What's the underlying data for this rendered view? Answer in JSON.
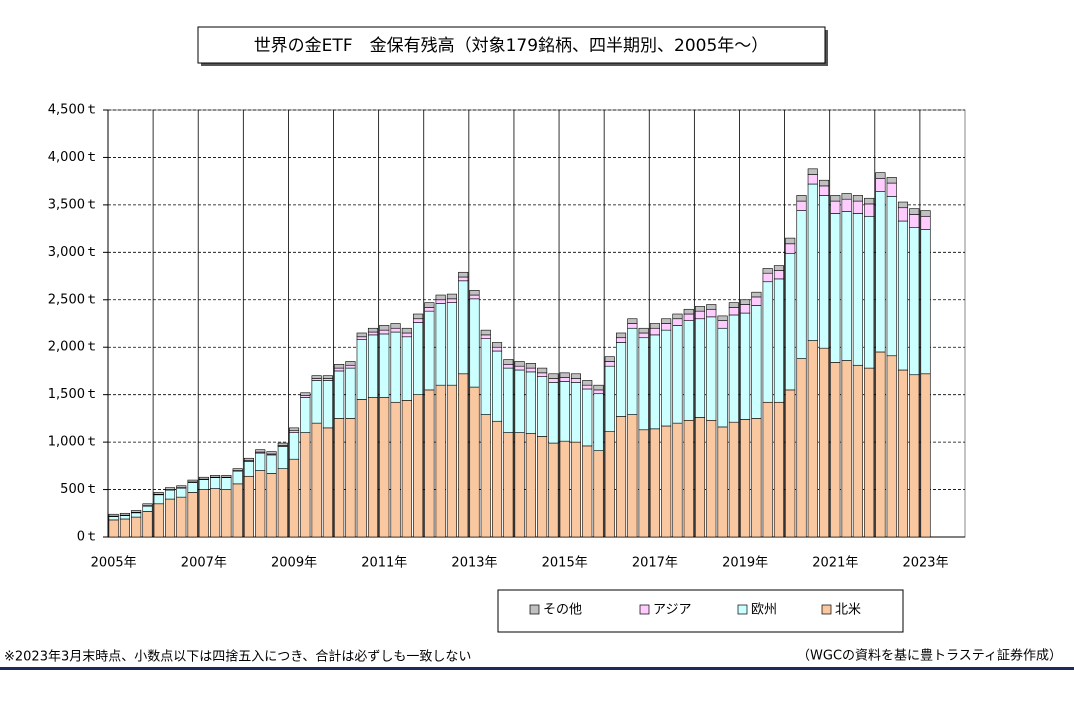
{
  "chart_data": {
    "type": "stacked_bar",
    "title": "世界の金ETF　金保有残高（対象179銘柄、四半期別、2005年～）",
    "notes": [
      "※2023年3月末時点、小数点以下は四捨五入につき、合計は必ずしも一致しない",
      "（WGCの資料を基に豊トラスティ証券作成）"
    ],
    "categories": [
      "2005年",
      null,
      null,
      null,
      null,
      null,
      null,
      null,
      "2007年",
      null,
      null,
      null,
      null,
      null,
      null,
      null,
      "2009年",
      null,
      null,
      null,
      null,
      null,
      null,
      null,
      "2011年",
      null,
      null,
      null,
      null,
      null,
      null,
      null,
      "2013年",
      null,
      null,
      null,
      null,
      null,
      null,
      null,
      "2015年",
      null,
      null,
      null,
      null,
      null,
      null,
      null,
      "2017年",
      null,
      null,
      null,
      null,
      null,
      null,
      null,
      "2019年",
      null,
      null,
      null,
      null,
      null,
      null,
      null,
      "2021年",
      null,
      null,
      null,
      null,
      null,
      null,
      null,
      "2023年",
      null,
      null,
      null
    ],
    "series": [
      {
        "name": "その他",
        "color": "#c0c0c0",
        "values": [
          20,
          20,
          20,
          20,
          20,
          20,
          20,
          20,
          20,
          20,
          20,
          20,
          25,
          25,
          25,
          25,
          30,
          30,
          30,
          30,
          40,
          40,
          40,
          40,
          50,
          50,
          50,
          50,
          50,
          50,
          50,
          50,
          50,
          50,
          50,
          50,
          50,
          50,
          50,
          50,
          50,
          50,
          50,
          50,
          50,
          50,
          50,
          50,
          50,
          50,
          50,
          50,
          50,
          50,
          50,
          50,
          50,
          50,
          50,
          50,
          60,
          60,
          60,
          60,
          60,
          60,
          60,
          60,
          60,
          60,
          60,
          60,
          60,
          null,
          null,
          null
        ]
      },
      {
        "name": "アジア",
        "color": "#ffccff",
        "values": [
          5,
          5,
          5,
          5,
          5,
          5,
          5,
          5,
          5,
          5,
          5,
          5,
          10,
          10,
          10,
          10,
          20,
          20,
          20,
          20,
          30,
          30,
          30,
          30,
          40,
          40,
          40,
          40,
          40,
          40,
          40,
          40,
          40,
          40,
          40,
          40,
          40,
          40,
          40,
          40,
          40,
          40,
          40,
          40,
          50,
          50,
          50,
          50,
          70,
          70,
          70,
          70,
          80,
          80,
          80,
          80,
          90,
          90,
          90,
          90,
          100,
          100,
          100,
          100,
          130,
          130,
          130,
          130,
          140,
          140,
          140,
          140,
          140,
          null,
          null,
          null
        ]
      },
      {
        "name": "欧州",
        "color": "#ccffff",
        "values": [
          35,
          35,
          45,
          55,
          95,
          95,
          95,
          105,
          105,
          115,
          125,
          135,
          155,
          185,
          195,
          235,
          280,
          370,
          450,
          500,
          500,
          530,
          630,
          660,
          670,
          740,
          670,
          760,
          830,
          860,
          870,
          980,
          930,
          800,
          740,
          680,
          660,
          650,
          630,
          640,
          630,
          630,
          600,
          600,
          690,
          780,
          910,
          970,
          990,
          1010,
          1030,
          1050,
          1040,
          1090,
          1040,
          1130,
          1120,
          1190,
          1270,
          1300,
          1440,
          1560,
          1650,
          1610,
          1570,
          1570,
          1600,
          1600,
          1690,
          1680,
          1570,
          1550,
          1520,
          null,
          null,
          null
        ]
      },
      {
        "name": "北米",
        "color": "#fac8a0",
        "values": [
          180,
          190,
          210,
          270,
          350,
          400,
          420,
          470,
          500,
          510,
          500,
          560,
          640,
          700,
          670,
          720,
          820,
          1100,
          1200,
          1150,
          1250,
          1250,
          1450,
          1470,
          1470,
          1420,
          1440,
          1500,
          1550,
          1600,
          1600,
          1720,
          1580,
          1290,
          1220,
          1100,
          1100,
          1090,
          1060,
          990,
          1010,
          1000,
          960,
          910,
          1110,
          1270,
          1290,
          1130,
          1140,
          1170,
          1200,
          1230,
          1260,
          1230,
          1160,
          1210,
          1240,
          1250,
          1420,
          1420,
          1550,
          1880,
          2070,
          1990,
          1840,
          1860,
          1810,
          1780,
          1950,
          1910,
          1760,
          1710,
          1720,
          null,
          null,
          null
        ]
      }
    ],
    "ylim": [
      0,
      4500
    ],
    "yticks": [
      {
        "value": 0,
        "label": "0ｔ"
      },
      {
        "value": 500,
        "label": "500ｔ"
      },
      {
        "value": 1000,
        "label": "1,000ｔ"
      },
      {
        "value": 1500,
        "label": "1,500ｔ"
      },
      {
        "value": 2000,
        "label": "2,000ｔ"
      },
      {
        "value": 2500,
        "label": "2,500ｔ"
      },
      {
        "value": 3000,
        "label": "3,000ｔ"
      },
      {
        "value": 3500,
        "label": "3,500ｔ"
      },
      {
        "value": 4000,
        "label": "4,000ｔ"
      },
      {
        "value": 4500,
        "label": "4,500ｔ"
      }
    ],
    "grid": true
  }
}
